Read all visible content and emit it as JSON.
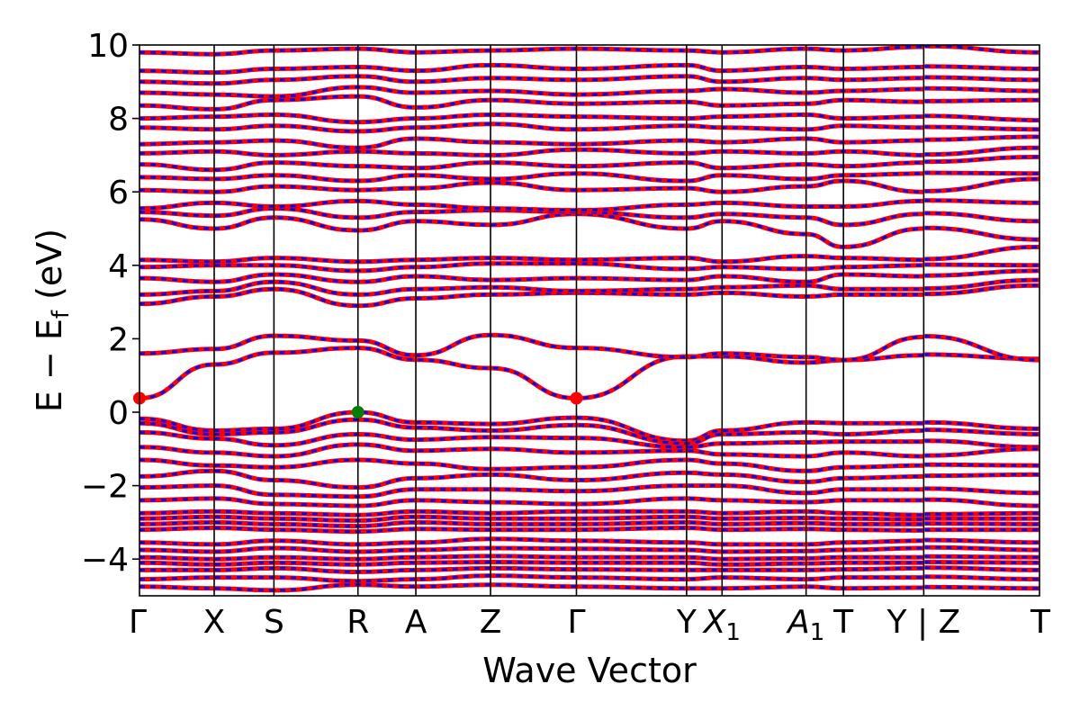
{
  "chart_data": {
    "type": "line",
    "xlabel": "Wave Vector",
    "ylabel_parts": {
      "main": "E − E",
      "subscript": "f",
      "unit": " (eV)"
    },
    "ylim": [
      -5,
      10
    ],
    "yticks": [
      {
        "value": 10,
        "label": "10"
      },
      {
        "value": 8,
        "label": "8"
      },
      {
        "value": 6,
        "label": "6"
      },
      {
        "value": 4,
        "label": "4"
      },
      {
        "value": 2,
        "label": "2"
      },
      {
        "value": 0,
        "label": "0"
      },
      {
        "value": -2,
        "label": "−2"
      },
      {
        "value": -4,
        "label": "−4"
      }
    ],
    "kpath_positions": [
      0,
      0.4,
      0.72,
      1.17,
      1.48,
      1.88,
      2.34,
      2.93,
      3.12,
      3.57,
      3.77,
      4.2,
      4.82
    ],
    "kpoint_labels": [
      {
        "pos": 0,
        "label": "Γ",
        "sub": ""
      },
      {
        "pos": 0.4,
        "label": "X",
        "sub": ""
      },
      {
        "pos": 0.72,
        "label": "S",
        "sub": ""
      },
      {
        "pos": 1.17,
        "label": "R",
        "sub": ""
      },
      {
        "pos": 1.48,
        "label": "A",
        "sub": ""
      },
      {
        "pos": 1.88,
        "label": "Z",
        "sub": ""
      },
      {
        "pos": 2.34,
        "label": "Γ",
        "sub": ""
      },
      {
        "pos": 2.93,
        "label": "Y",
        "sub": ""
      },
      {
        "pos": 3.12,
        "label": "X",
        "sub": "1",
        "italic": true
      },
      {
        "pos": 3.57,
        "label": "A",
        "sub": "1",
        "italic": true
      },
      {
        "pos": 3.77,
        "label": "T",
        "sub": ""
      },
      {
        "pos": 4.2,
        "label": "Y | Z",
        "sub": ""
      },
      {
        "pos": 4.82,
        "label": "T",
        "sub": ""
      }
    ],
    "series": [
      {
        "style": "solid",
        "color": "#ff0000"
      },
      {
        "style": "dashed",
        "color": "#0000ff"
      }
    ],
    "bands": [
      {
        "y": [
          0.38,
          1.3,
          1.62,
          1.75,
          1.43,
          1.2,
          0.38,
          1.52,
          1.52,
          1.35,
          1.42,
          1.55,
          1.45
        ]
      },
      {
        "y": [
          1.6,
          1.72,
          2.08,
          1.95,
          1.55,
          2.1,
          1.75,
          1.5,
          1.6,
          1.5,
          1.42,
          2.05,
          1.42
        ]
      },
      {
        "y": [
          -0.18,
          -0.5,
          -0.45,
          0.0,
          -0.28,
          -0.32,
          -0.15,
          -0.78,
          -0.5,
          -0.28,
          -0.3,
          -0.3,
          -0.45
        ]
      },
      {
        "y": [
          -0.3,
          -0.6,
          -0.55,
          -0.2,
          -0.42,
          -0.5,
          -0.35,
          -0.85,
          -0.6,
          -0.55,
          -0.6,
          -0.5,
          -0.6
        ]
      },
      {
        "y": [
          -0.55,
          -0.72,
          -0.9,
          -0.6,
          -0.75,
          -0.68,
          -0.7,
          -0.95,
          -0.85,
          -0.82,
          -0.8,
          -0.8,
          -0.95
        ]
      },
      {
        "y": [
          -0.95,
          -1.1,
          -1.2,
          -0.88,
          -1.05,
          -1.0,
          -1.1,
          -1.05,
          -1.15,
          -1.2,
          -1.1,
          -1.2,
          -1.0
        ]
      },
      {
        "y": [
          -1.3,
          -1.45,
          -1.5,
          -1.3,
          -1.4,
          -1.55,
          -1.5,
          -1.3,
          -1.4,
          -1.6,
          -1.5,
          -1.45,
          -1.45
        ]
      },
      {
        "y": [
          -1.75,
          -1.6,
          -1.85,
          -2.05,
          -1.8,
          -1.7,
          -1.85,
          -1.65,
          -1.7,
          -1.9,
          -1.8,
          -1.75,
          -1.7
        ]
      },
      {
        "y": [
          -2.05,
          -2.0,
          -2.25,
          -2.3,
          -2.1,
          -2.1,
          -2.15,
          -2.0,
          -2.0,
          -2.2,
          -2.1,
          -2.1,
          -2.2
        ]
      },
      {
        "y": [
          -2.4,
          -2.35,
          -2.5,
          -2.55,
          -2.4,
          -2.45,
          -2.5,
          -2.35,
          -2.4,
          -2.45,
          -2.4,
          -2.4,
          -2.55
        ]
      },
      {
        "y": [
          -2.75,
          -2.7,
          -2.75,
          -2.8,
          -2.7,
          -2.75,
          -2.7,
          -2.7,
          -2.75,
          -2.7,
          -2.75,
          -2.8,
          -2.75
        ]
      },
      {
        "y": [
          -2.9,
          -2.85,
          -2.9,
          -2.95,
          -2.85,
          -2.9,
          -2.9,
          -2.85,
          -2.9,
          -2.88,
          -2.9,
          -2.92,
          -2.9
        ]
      },
      {
        "y": [
          -3.05,
          -3.0,
          -3.05,
          -3.1,
          -3.0,
          -3.05,
          -3.05,
          -3.0,
          -3.05,
          -3.02,
          -3.05,
          -3.05,
          -3.05
        ]
      },
      {
        "y": [
          -3.2,
          -3.15,
          -3.2,
          -3.25,
          -3.18,
          -3.2,
          -3.2,
          -3.15,
          -3.2,
          -3.18,
          -3.2,
          -3.22,
          -3.2
        ]
      },
      {
        "y": [
          -3.55,
          -3.6,
          -3.5,
          -3.6,
          -3.55,
          -3.45,
          -3.5,
          -3.55,
          -3.6,
          -3.6,
          -3.55,
          -3.5,
          -3.55
        ]
      },
      {
        "y": [
          -3.75,
          -3.8,
          -3.7,
          -3.8,
          -3.75,
          -3.7,
          -3.72,
          -3.75,
          -3.8,
          -3.78,
          -3.75,
          -3.7,
          -3.75
        ]
      },
      {
        "y": [
          -3.95,
          -4.0,
          -3.95,
          -4.0,
          -3.95,
          -3.92,
          -3.95,
          -3.95,
          -4.0,
          -3.98,
          -3.95,
          -3.95,
          -3.95
        ]
      },
      {
        "y": [
          -4.1,
          -4.15,
          -4.1,
          -4.15,
          -4.1,
          -4.08,
          -4.1,
          -4.1,
          -4.15,
          -4.12,
          -4.1,
          -4.1,
          -4.1
        ]
      },
      {
        "y": [
          -4.3,
          -4.3,
          -4.25,
          -4.35,
          -4.3,
          -4.25,
          -4.28,
          -4.3,
          -4.3,
          -4.3,
          -4.28,
          -4.25,
          -4.3
        ]
      },
      {
        "y": [
          -4.55,
          -4.5,
          -4.5,
          -4.6,
          -4.55,
          -4.45,
          -4.5,
          -4.55,
          -4.5,
          -4.55,
          -4.5,
          -4.5,
          -4.55
        ]
      },
      {
        "y": [
          -4.75,
          -4.8,
          -4.85,
          -4.7,
          -4.75,
          -4.7,
          -4.75,
          -4.8,
          -4.8,
          -4.75,
          -4.8,
          -4.78,
          -4.8
        ]
      },
      {
        "y": [
          2.95,
          3.15,
          3.35,
          2.9,
          3.1,
          3.2,
          3.25,
          3.2,
          3.25,
          3.15,
          3.2,
          3.2,
          3.45
        ]
      },
      {
        "y": [
          3.2,
          3.3,
          3.55,
          3.2,
          3.35,
          3.4,
          3.3,
          3.35,
          3.4,
          3.45,
          3.35,
          3.35,
          3.6
        ]
      },
      {
        "y": [
          3.65,
          3.55,
          3.75,
          3.55,
          3.7,
          3.6,
          3.65,
          3.6,
          3.7,
          3.55,
          3.75,
          3.7,
          3.85
        ]
      },
      {
        "y": [
          3.95,
          4.0,
          4.0,
          3.85,
          3.95,
          4.05,
          4.05,
          3.9,
          3.95,
          3.9,
          3.95,
          4.0,
          4.0
        ]
      },
      {
        "y": [
          4.15,
          4.1,
          4.2,
          4.1,
          4.15,
          4.2,
          4.15,
          4.2,
          4.1,
          4.25,
          4.2,
          4.15,
          4.5
        ]
      },
      {
        "y": [
          5.25,
          5.0,
          5.3,
          4.95,
          5.2,
          5.1,
          5.4,
          5.0,
          5.2,
          4.85,
          4.5,
          5.0,
          4.7
        ]
      },
      {
        "y": [
          5.45,
          5.35,
          5.55,
          5.3,
          5.45,
          5.5,
          5.45,
          5.3,
          5.4,
          5.3,
          5.1,
          5.4,
          5.2
        ]
      },
      {
        "y": [
          5.55,
          5.7,
          5.6,
          5.75,
          5.65,
          5.55,
          5.5,
          5.65,
          5.7,
          5.6,
          5.6,
          5.75,
          5.7
        ]
      },
      {
        "y": [
          6.05,
          6.0,
          6.15,
          6.05,
          6.1,
          6.25,
          6.05,
          6.1,
          6.0,
          6.15,
          6.3,
          6.0,
          6.35
        ]
      },
      {
        "y": [
          6.4,
          6.35,
          6.45,
          6.3,
          6.45,
          6.35,
          6.5,
          6.3,
          6.45,
          6.35,
          6.45,
          6.5,
          6.5
        ]
      },
      {
        "y": [
          6.75,
          6.6,
          6.8,
          6.7,
          6.65,
          6.8,
          6.7,
          6.8,
          6.65,
          6.75,
          6.7,
          6.8,
          6.95
        ]
      },
      {
        "y": [
          7.05,
          7.1,
          7.0,
          7.1,
          7.05,
          7.0,
          7.15,
          7.05,
          7.1,
          7.05,
          7.1,
          7.0,
          7.2
        ]
      },
      {
        "y": [
          7.3,
          7.35,
          7.4,
          7.2,
          7.45,
          7.35,
          7.3,
          7.4,
          7.35,
          7.45,
          7.35,
          7.4,
          7.5
        ]
      },
      {
        "y": [
          7.75,
          7.7,
          7.8,
          7.65,
          7.75,
          7.85,
          7.7,
          7.8,
          7.75,
          7.7,
          7.8,
          7.75,
          7.7
        ]
      },
      {
        "y": [
          8.0,
          8.05,
          8.1,
          7.9,
          8.0,
          8.1,
          8.05,
          8.0,
          8.05,
          8.1,
          8.0,
          8.05,
          7.95
        ]
      },
      {
        "y": [
          8.35,
          8.25,
          8.5,
          8.6,
          8.3,
          8.5,
          8.4,
          8.45,
          8.35,
          8.4,
          8.5,
          8.45,
          8.5
        ]
      },
      {
        "y": [
          8.7,
          8.65,
          8.6,
          8.85,
          8.7,
          8.75,
          8.65,
          8.75,
          8.8,
          8.7,
          8.75,
          8.8,
          8.75
        ]
      },
      {
        "y": [
          9.0,
          8.95,
          9.05,
          9.15,
          9.0,
          9.1,
          9.05,
          9.15,
          9.0,
          9.1,
          9.05,
          9.1,
          9.05
        ]
      },
      {
        "y": [
          9.3,
          9.25,
          9.35,
          9.4,
          9.3,
          9.45,
          9.35,
          9.45,
          9.3,
          9.4,
          9.35,
          9.4,
          9.35
        ]
      },
      {
        "y": [
          9.8,
          9.75,
          9.85,
          9.9,
          9.8,
          9.85,
          9.9,
          9.85,
          9.8,
          9.9,
          9.85,
          9.95,
          9.8
        ]
      }
    ],
    "markers": [
      {
        "x": 0,
        "y": 0.38,
        "color": "#ff0000"
      },
      {
        "x": 2.34,
        "y": 0.38,
        "color": "#ff0000"
      },
      {
        "x": 1.17,
        "y": 0.0,
        "color": "#008000"
      }
    ],
    "break_after": 4.2
  }
}
